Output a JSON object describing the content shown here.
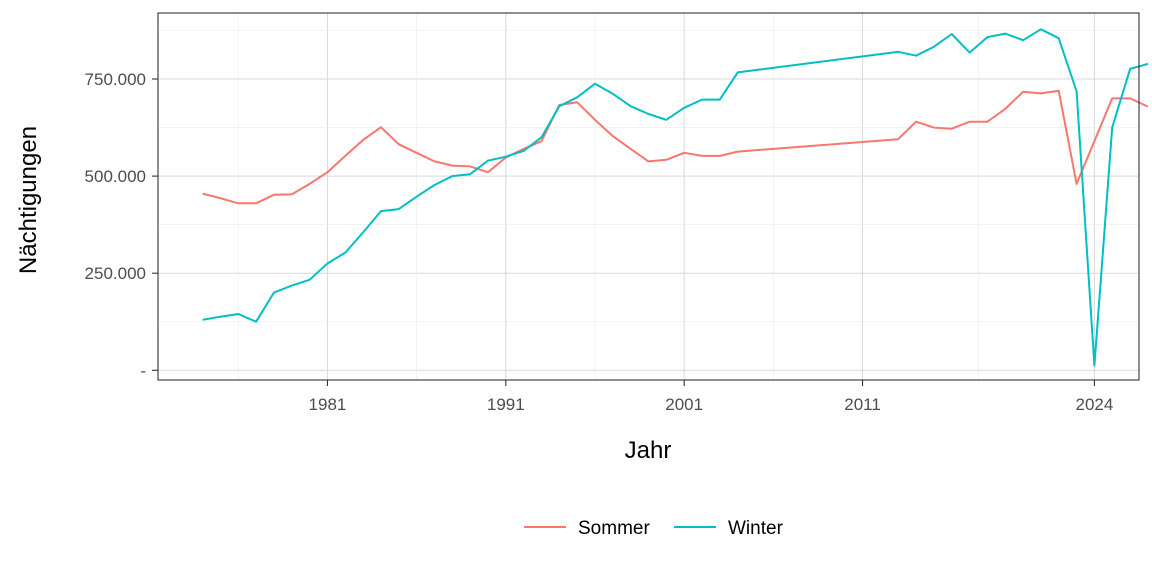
{
  "chart_data": {
    "type": "line",
    "xlabel": "Jahr",
    "ylabel": "Nächtigungen",
    "x_ticks": [
      1981,
      1991,
      2001,
      2011,
      2024
    ],
    "x_range": [
      1971.5,
      2026.5
    ],
    "y_ticks": [
      {
        "value": 0,
        "label": "-"
      },
      {
        "value": 250000,
        "label": "250.000"
      },
      {
        "value": 500000,
        "label": "500.000"
      },
      {
        "value": 750000,
        "label": "750.000"
      }
    ],
    "y_range": [
      -25000,
      920000
    ],
    "grid": true,
    "legend_position": "bottom",
    "series": [
      {
        "name": "Sommer",
        "color": "#F8766D",
        "points": [
          [
            1974,
            455000
          ],
          [
            1975,
            443000
          ],
          [
            1976,
            430000
          ],
          [
            1977,
            430000
          ],
          [
            1978,
            452000
          ],
          [
            1979,
            453000
          ],
          [
            1980,
            480000
          ],
          [
            1981,
            510000
          ],
          [
            1982,
            552000
          ],
          [
            1983,
            593000
          ],
          [
            1984,
            626000
          ],
          [
            1985,
            582000
          ],
          [
            1986,
            560000
          ],
          [
            1987,
            538000
          ],
          [
            1988,
            527000
          ],
          [
            1989,
            525000
          ],
          [
            1990,
            510000
          ],
          [
            1991,
            548000
          ],
          [
            1992,
            570000
          ],
          [
            1993,
            590000
          ],
          [
            1994,
            683000
          ],
          [
            1995,
            690000
          ],
          [
            1996,
            645000
          ],
          [
            1997,
            603000
          ],
          [
            1998,
            570000
          ],
          [
            1999,
            538000
          ],
          [
            2000,
            542000
          ],
          [
            2001,
            560000
          ],
          [
            2002,
            552000
          ],
          [
            2003,
            552000
          ],
          [
            2004,
            563000
          ],
          [
            2013,
            595000
          ],
          [
            2014,
            640000
          ],
          [
            2015,
            625000
          ],
          [
            2016,
            622000
          ],
          [
            2017,
            640000
          ],
          [
            2018,
            640000
          ],
          [
            2019,
            673000
          ],
          [
            2020,
            717000
          ],
          [
            2021,
            713000
          ],
          [
            2022,
            720000
          ],
          [
            2023,
            480000
          ],
          [
            2025,
            700000
          ],
          [
            2026,
            700000
          ],
          [
            2027,
            679000
          ]
        ]
      },
      {
        "name": "Winter",
        "color": "#00BFC4",
        "points": [
          [
            1974,
            130000
          ],
          [
            1975,
            138000
          ],
          [
            1976,
            145000
          ],
          [
            1977,
            125000
          ],
          [
            1978,
            200000
          ],
          [
            1979,
            218000
          ],
          [
            1980,
            233000
          ],
          [
            1981,
            275000
          ],
          [
            1982,
            303000
          ],
          [
            1983,
            355000
          ],
          [
            1984,
            410000
          ],
          [
            1985,
            415000
          ],
          [
            1986,
            447000
          ],
          [
            1987,
            477000
          ],
          [
            1988,
            500000
          ],
          [
            1989,
            505000
          ],
          [
            1990,
            540000
          ],
          [
            1991,
            550000
          ],
          [
            1992,
            565000
          ],
          [
            1993,
            600000
          ],
          [
            1994,
            680000
          ],
          [
            1995,
            703000
          ],
          [
            1996,
            738000
          ],
          [
            1997,
            712000
          ],
          [
            1998,
            680000
          ],
          [
            1999,
            660000
          ],
          [
            2000,
            645000
          ],
          [
            2001,
            676000
          ],
          [
            2002,
            697000
          ],
          [
            2003,
            697000
          ],
          [
            2004,
            767000
          ],
          [
            2013,
            820000
          ],
          [
            2014,
            810000
          ],
          [
            2015,
            833000
          ],
          [
            2016,
            866000
          ],
          [
            2017,
            818000
          ],
          [
            2018,
            858000
          ],
          [
            2019,
            867000
          ],
          [
            2020,
            850000
          ],
          [
            2021,
            878000
          ],
          [
            2022,
            855000
          ],
          [
            2023,
            718000
          ],
          [
            2024,
            12000
          ],
          [
            2025,
            625000
          ],
          [
            2026,
            776000
          ],
          [
            2027,
            789000
          ]
        ]
      }
    ]
  }
}
